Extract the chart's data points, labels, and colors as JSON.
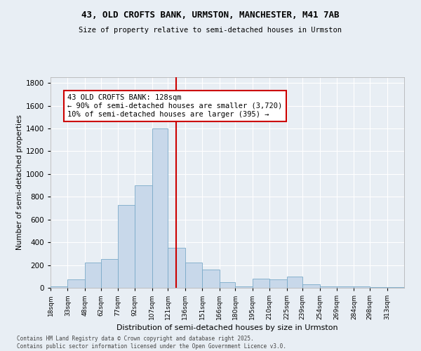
{
  "title": "43, OLD CROFTS BANK, URMSTON, MANCHESTER, M41 7AB",
  "subtitle": "Size of property relative to semi-detached houses in Urmston",
  "xlabel": "Distribution of semi-detached houses by size in Urmston",
  "ylabel": "Number of semi-detached properties",
  "property_label": "43 OLD CROFTS BANK: 128sqm",
  "annotation_line1": "← 90% of semi-detached houses are smaller (3,720)",
  "annotation_line2": "10% of semi-detached houses are larger (395) →",
  "bin_labels": [
    "18sqm",
    "33sqm",
    "48sqm",
    "62sqm",
    "77sqm",
    "92sqm",
    "107sqm",
    "121sqm",
    "136sqm",
    "151sqm",
    "166sqm",
    "180sqm",
    "195sqm",
    "210sqm",
    "225sqm",
    "239sqm",
    "254sqm",
    "269sqm",
    "284sqm",
    "298sqm",
    "313sqm"
  ],
  "bin_edges": [
    18,
    33,
    48,
    62,
    77,
    92,
    107,
    121,
    136,
    151,
    166,
    180,
    195,
    210,
    225,
    239,
    254,
    269,
    284,
    298,
    313,
    328
  ],
  "bar_values": [
    15,
    75,
    220,
    250,
    730,
    900,
    1400,
    350,
    220,
    160,
    50,
    15,
    80,
    75,
    100,
    30,
    10,
    10,
    10,
    5,
    5
  ],
  "bar_color": "#c8d8ea",
  "bar_edge_color": "#7aaac8",
  "vline_x": 128,
  "vline_color": "#cc0000",
  "annotation_box_color": "#cc0000",
  "background_color": "#e8eef4",
  "grid_color": "#ffffff",
  "ylim": [
    0,
    1850
  ],
  "yticks": [
    0,
    200,
    400,
    600,
    800,
    1000,
    1200,
    1400,
    1600,
    1800
  ],
  "footer_line1": "Contains HM Land Registry data © Crown copyright and database right 2025.",
  "footer_line2": "Contains public sector information licensed under the Open Government Licence v3.0."
}
